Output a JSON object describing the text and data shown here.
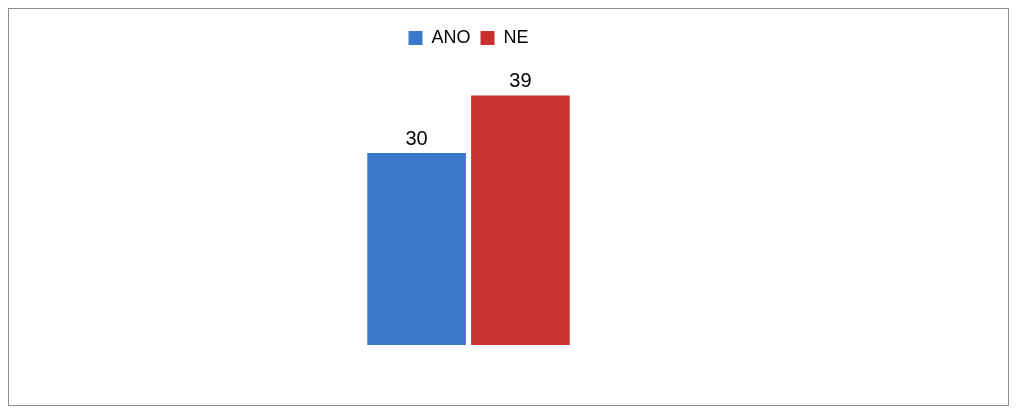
{
  "chart_data": {
    "type": "bar",
    "categories": [
      null
    ],
    "series": [
      {
        "name": "ANO",
        "color": "#3b78c9",
        "values": [
          30
        ]
      },
      {
        "name": "NE",
        "color": "#c8312e",
        "values": [
          39
        ]
      }
    ],
    "data_labels": true,
    "legend": "top",
    "tick_labels": false
  }
}
